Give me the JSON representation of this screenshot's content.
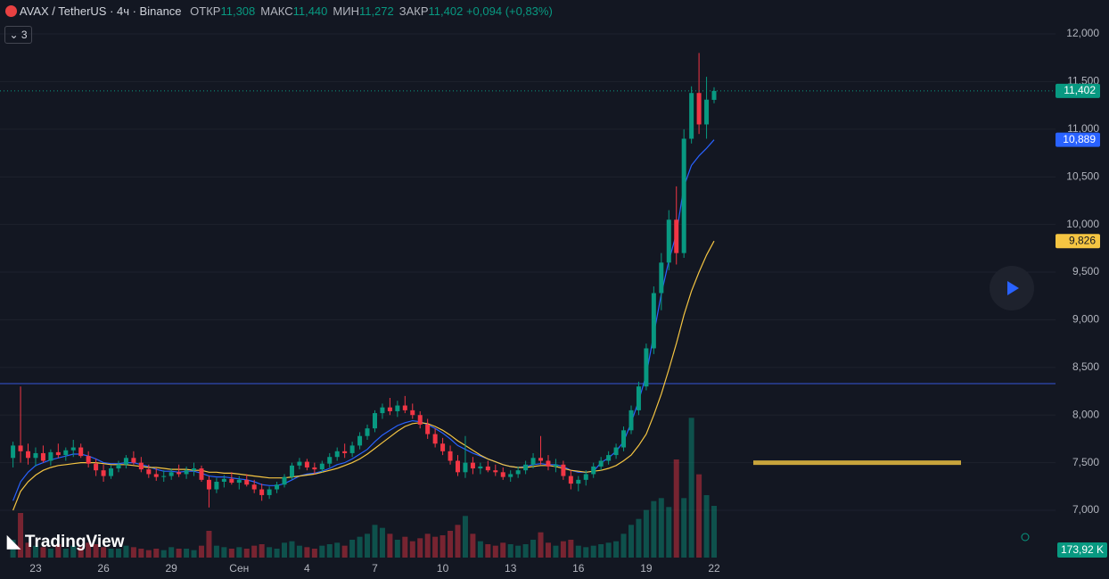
{
  "header": {
    "symbol": "AVAX / TetherUS · 4ч · Binance",
    "ohlc": [
      {
        "label": "ОТКР",
        "value": "11,308"
      },
      {
        "label": "МАКС",
        "value": "11,440"
      },
      {
        "label": "МИН",
        "value": "11,272"
      },
      {
        "label": "ЗАКР",
        "value": "11,402"
      }
    ],
    "change": "+0,094 (+0,83%)",
    "indicators_toggle": "3"
  },
  "watermark": "TradingView",
  "chart_data": {
    "type": "candlestick",
    "categories": [
      null,
      null,
      null,
      "23",
      null,
      null,
      null,
      null,
      null,
      null,
      null,
      null,
      "26",
      null,
      null,
      null,
      null,
      null,
      null,
      null,
      null,
      "29",
      null,
      null,
      null,
      null,
      null,
      null,
      null,
      null,
      "Сен",
      null,
      null,
      null,
      null,
      null,
      null,
      null,
      null,
      "4",
      null,
      null,
      null,
      null,
      null,
      null,
      null,
      null,
      "7",
      null,
      null,
      null,
      null,
      null,
      null,
      null,
      null,
      "10",
      null,
      null,
      null,
      null,
      null,
      null,
      null,
      null,
      "13",
      null,
      null,
      null,
      null,
      null,
      null,
      null,
      null,
      "16",
      null,
      null,
      null,
      null,
      null,
      null,
      null,
      null,
      "19",
      null,
      null,
      null,
      null,
      null,
      null,
      null,
      null,
      "22"
    ],
    "open": [
      7.55,
      7.68,
      7.62,
      7.55,
      7.6,
      7.52,
      7.61,
      7.58,
      7.63,
      7.66,
      7.57,
      7.49,
      7.42,
      7.36,
      7.44,
      7.48,
      7.55,
      7.5,
      7.43,
      7.38,
      7.35,
      7.36,
      7.4,
      7.38,
      7.42,
      7.44,
      7.32,
      7.22,
      7.3,
      7.33,
      7.29,
      7.32,
      7.27,
      7.22,
      7.16,
      7.22,
      7.27,
      7.35,
      7.47,
      7.51,
      7.45,
      7.43,
      7.49,
      7.56,
      7.62,
      7.6,
      7.68,
      7.78,
      7.86,
      8.02,
      8.08,
      8.04,
      8.1,
      8.05,
      8.0,
      7.9,
      7.8,
      7.7,
      7.62,
      7.52,
      7.4,
      7.5,
      7.44,
      7.46,
      7.42,
      7.4,
      7.35,
      7.38,
      7.42,
      7.48,
      7.55,
      7.52,
      7.46,
      7.48,
      7.36,
      7.28,
      7.32,
      7.38,
      7.46,
      7.52,
      7.58,
      7.66,
      7.84,
      8.05,
      8.3,
      8.7,
      9.28,
      9.6,
      10.05,
      9.7,
      10.9,
      11.38,
      11.05,
      11.308
    ],
    "high": [
      7.72,
      8.3,
      7.7,
      7.66,
      7.68,
      7.64,
      7.7,
      7.66,
      7.74,
      7.7,
      7.62,
      7.54,
      7.48,
      7.47,
      7.52,
      7.58,
      7.62,
      7.56,
      7.48,
      7.44,
      7.42,
      7.44,
      7.48,
      7.46,
      7.5,
      7.47,
      7.36,
      7.34,
      7.37,
      7.4,
      7.36,
      7.38,
      7.32,
      7.28,
      7.25,
      7.3,
      7.38,
      7.5,
      7.55,
      7.54,
      7.5,
      7.52,
      7.6,
      7.66,
      7.7,
      7.72,
      7.82,
      7.9,
      8.05,
      8.12,
      8.18,
      8.15,
      8.2,
      8.12,
      8.04,
      7.96,
      7.86,
      7.76,
      7.68,
      7.58,
      7.78,
      7.56,
      7.5,
      7.52,
      7.48,
      7.45,
      7.42,
      7.46,
      7.52,
      7.6,
      7.78,
      7.58,
      7.54,
      7.52,
      7.42,
      7.36,
      7.42,
      7.5,
      7.56,
      7.62,
      7.7,
      7.88,
      8.1,
      8.35,
      8.75,
      9.35,
      9.7,
      10.15,
      10.4,
      11.0,
      11.45,
      11.8,
      11.55,
      11.44
    ],
    "low": [
      7.45,
      7.5,
      7.48,
      7.46,
      7.5,
      7.47,
      7.55,
      7.52,
      7.56,
      7.55,
      7.45,
      7.36,
      7.3,
      7.33,
      7.4,
      7.44,
      7.48,
      7.4,
      7.34,
      7.31,
      7.3,
      7.32,
      7.35,
      7.33,
      7.36,
      7.3,
      7.03,
      7.18,
      7.24,
      7.27,
      7.22,
      7.25,
      7.18,
      7.1,
      7.12,
      7.18,
      7.24,
      7.32,
      7.43,
      7.42,
      7.38,
      7.4,
      7.45,
      7.52,
      7.55,
      7.56,
      7.64,
      7.74,
      7.82,
      7.96,
      8.0,
      7.98,
      8.02,
      7.96,
      7.86,
      7.75,
      7.66,
      7.58,
      7.48,
      7.36,
      7.34,
      7.38,
      7.38,
      7.4,
      7.36,
      7.32,
      7.3,
      7.34,
      7.38,
      7.44,
      7.48,
      7.42,
      7.4,
      7.32,
      7.22,
      7.2,
      7.26,
      7.34,
      7.42,
      7.48,
      7.54,
      7.62,
      7.8,
      8.0,
      8.26,
      8.64,
      9.1,
      9.52,
      9.58,
      9.65,
      10.85,
      10.95,
      10.9,
      11.272
    ],
    "close": [
      7.68,
      7.62,
      7.55,
      7.6,
      7.52,
      7.61,
      7.58,
      7.63,
      7.66,
      7.57,
      7.49,
      7.42,
      7.36,
      7.44,
      7.48,
      7.55,
      7.5,
      7.43,
      7.38,
      7.35,
      7.36,
      7.4,
      7.38,
      7.42,
      7.44,
      7.32,
      7.22,
      7.3,
      7.33,
      7.29,
      7.32,
      7.27,
      7.22,
      7.16,
      7.22,
      7.27,
      7.35,
      7.47,
      7.51,
      7.45,
      7.43,
      7.49,
      7.56,
      7.62,
      7.6,
      7.68,
      7.78,
      7.86,
      8.02,
      8.08,
      8.04,
      8.1,
      8.05,
      8.0,
      7.9,
      7.8,
      7.7,
      7.62,
      7.52,
      7.4,
      7.5,
      7.44,
      7.46,
      7.42,
      7.4,
      7.35,
      7.38,
      7.42,
      7.48,
      7.55,
      7.52,
      7.46,
      7.48,
      7.36,
      7.28,
      7.32,
      7.38,
      7.46,
      7.52,
      7.58,
      7.66,
      7.84,
      8.05,
      8.3,
      8.7,
      9.28,
      9.6,
      10.05,
      9.7,
      10.9,
      11.38,
      11.05,
      11.31,
      11.402
    ],
    "up_color": "#089981",
    "down_color": "#f23645",
    "ylim": [
      6.504,
      12.356
    ],
    "yticks": [
      {
        "value": 7,
        "label": "7,000"
      },
      {
        "value": 7.5,
        "label": "7,500"
      },
      {
        "value": 8,
        "label": "8,000"
      },
      {
        "value": 8.5,
        "label": "8,500"
      },
      {
        "value": 9,
        "label": "9,000"
      },
      {
        "value": 9.5,
        "label": "9,500"
      },
      {
        "value": 10,
        "label": "10,000"
      },
      {
        "value": 10.5,
        "label": "10,500"
      },
      {
        "value": 11,
        "label": "11,000"
      },
      {
        "value": 11.5,
        "label": "11,500"
      },
      {
        "value": 12,
        "label": "12,000"
      }
    ],
    "grid": true,
    "overlays": [
      {
        "color": "#2962ff",
        "values": [
          7.1,
          7.3,
          7.4,
          7.47,
          7.5,
          7.53,
          7.55,
          7.57,
          7.59,
          7.59,
          7.57,
          7.54,
          7.5,
          7.49,
          7.49,
          7.5,
          7.5,
          7.48,
          7.46,
          7.43,
          7.41,
          7.41,
          7.4,
          7.41,
          7.41,
          7.39,
          7.36,
          7.35,
          7.35,
          7.34,
          7.33,
          7.32,
          7.3,
          7.27,
          7.26,
          7.26,
          7.28,
          7.32,
          7.36,
          7.38,
          7.39,
          7.41,
          7.44,
          7.48,
          7.5,
          7.54,
          7.59,
          7.64,
          7.72,
          7.79,
          7.84,
          7.89,
          7.92,
          7.94,
          7.93,
          7.9,
          7.86,
          7.81,
          7.75,
          7.68,
          7.64,
          7.6,
          7.57,
          7.54,
          7.51,
          7.48,
          7.46,
          7.45,
          7.46,
          7.48,
          7.49,
          7.48,
          7.48,
          7.46,
          7.42,
          7.4,
          7.4,
          7.41,
          7.5,
          7.55,
          7.62,
          7.72,
          7.92,
          8.15,
          8.42,
          8.85,
          9.27,
          9.62,
          9.9,
          10.4,
          10.62,
          10.72,
          10.8,
          10.889
        ]
      },
      {
        "color": "#f5c542",
        "values": [
          7.0,
          7.2,
          7.3,
          7.37,
          7.42,
          7.45,
          7.47,
          7.48,
          7.49,
          7.5,
          7.5,
          7.5,
          7.49,
          7.48,
          7.48,
          7.48,
          7.47,
          7.46,
          7.45,
          7.45,
          7.44,
          7.43,
          7.43,
          7.43,
          7.42,
          7.42,
          7.4,
          7.4,
          7.39,
          7.39,
          7.38,
          7.37,
          7.36,
          7.35,
          7.34,
          7.34,
          7.34,
          7.35,
          7.36,
          7.37,
          7.38,
          7.4,
          7.42,
          7.44,
          7.47,
          7.5,
          7.54,
          7.59,
          7.65,
          7.71,
          7.77,
          7.83,
          7.88,
          7.91,
          7.92,
          7.91,
          7.88,
          7.84,
          7.79,
          7.73,
          7.68,
          7.63,
          7.58,
          7.54,
          7.51,
          7.48,
          7.46,
          7.45,
          7.45,
          7.46,
          7.47,
          7.47,
          7.46,
          7.44,
          7.42,
          7.41,
          7.4,
          7.41,
          7.42,
          7.44,
          7.47,
          7.52,
          7.58,
          7.68,
          7.8,
          8.0,
          8.22,
          8.48,
          8.75,
          9.05,
          9.3,
          9.5,
          9.68,
          9.826
        ]
      }
    ],
    "volume": {
      "values": [
        60,
        150,
        50,
        40,
        35,
        30,
        45,
        30,
        40,
        35,
        50,
        45,
        35,
        30,
        30,
        40,
        35,
        30,
        25,
        30,
        25,
        35,
        30,
        30,
        25,
        40,
        90,
        40,
        35,
        30,
        35,
        30,
        40,
        45,
        35,
        30,
        50,
        55,
        40,
        35,
        30,
        40,
        45,
        50,
        40,
        60,
        70,
        80,
        110,
        100,
        80,
        60,
        70,
        55,
        65,
        80,
        70,
        75,
        90,
        110,
        140,
        80,
        55,
        45,
        40,
        50,
        45,
        40,
        45,
        60,
        85,
        50,
        40,
        55,
        60,
        40,
        35,
        40,
        45,
        50,
        55,
        80,
        110,
        130,
        160,
        190,
        200,
        170,
        330,
        200,
        470,
        280,
        210,
        173.92
      ],
      "lim": [
        0,
        510
      ],
      "last_label": "173,92 K"
    },
    "price_labels": [
      {
        "value": 11.402,
        "label": "11,402",
        "color": "#089981"
      },
      {
        "value": 10.889,
        "label": "10,889",
        "color": "#2962ff"
      },
      {
        "value": 9.826,
        "label": "9,826",
        "color": "#f5c542"
      }
    ],
    "hlines": [
      {
        "value": 8.33,
        "color": "#3556d8"
      }
    ],
    "segments": [
      {
        "value": 7.5,
        "color": "#c8a43c"
      }
    ]
  }
}
